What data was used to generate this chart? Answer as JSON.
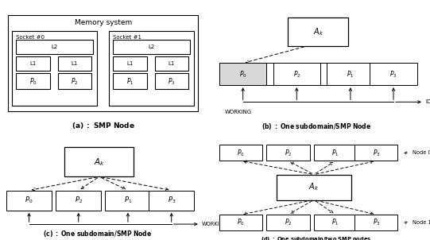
{
  "bg_color": "#ffffff",
  "black": "#000000",
  "white": "#ffffff",
  "gray": "#d8d8d8",
  "caption_a": "(a) : SMP Node",
  "caption_b": "(b) : One subdomain/SMP Node",
  "caption_c": "(c) : One subdomain/SMP Node",
  "caption_d": "(d) : One subdomain/two SMP nodes"
}
